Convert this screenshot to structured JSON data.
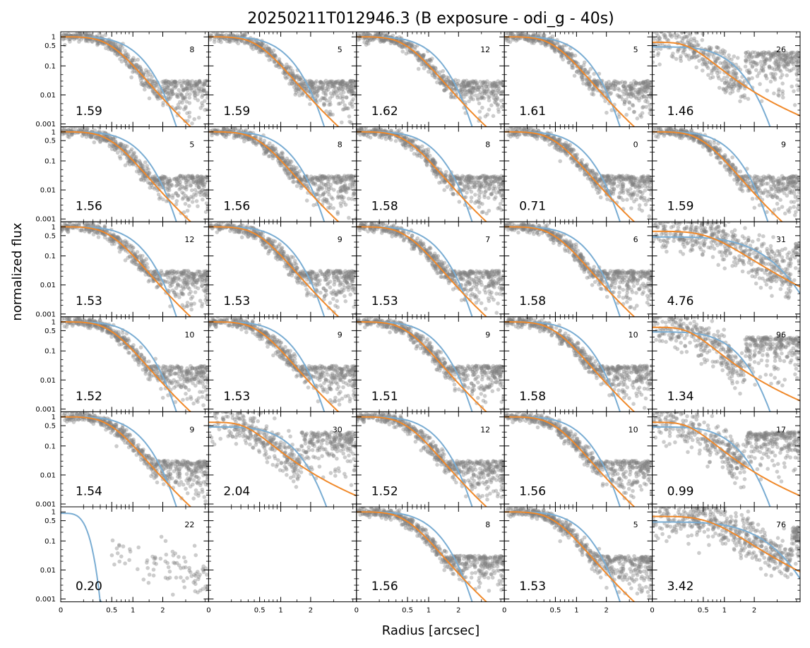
{
  "figure": {
    "title": "20250211T012946.3 (B exposure - odi_g - 40s)",
    "xlabel": "Radius [arcsec]",
    "ylabel": "normalized flux"
  },
  "colors": {
    "points": "#808080",
    "fit_blue": "#7aadd3",
    "fit_orange": "#f0892a",
    "axes": "#000000"
  },
  "chart_data": {
    "type": "scatter",
    "title": "20250211T012946.3 (B exposure - odi_g - 40s)",
    "xlabel": "Radius [arcsec]",
    "ylabel": "normalized flux",
    "grid": false,
    "rows": 6,
    "cols": 5,
    "y_scale": "log",
    "ylim": [
      0.0008,
      1.5
    ],
    "y_tick_labels": [
      "1",
      "0.5",
      "0.1",
      "0.01",
      "0.001"
    ],
    "y_tick_values": [
      1,
      0.5,
      0.1,
      0.01,
      0.001
    ],
    "x_scale": "sqrt",
    "xlim": [
      0,
      4.2
    ],
    "x_tick_labels": [
      "0",
      "0.5",
      "1",
      "2"
    ],
    "x_tick_values": [
      0,
      0.5,
      1,
      2
    ],
    "series": [
      {
        "name": "",
        "kind": "points"
      },
      {
        "name": "",
        "kind": "gaussian fit"
      },
      {
        "name": "",
        "kind": "moffat fit"
      }
    ],
    "panels": [
      {
        "fwhm": "1.59",
        "count": "8",
        "shape": "normal"
      },
      {
        "fwhm": "1.59",
        "count": "5",
        "shape": "normal"
      },
      {
        "fwhm": "1.62",
        "count": "12",
        "shape": "normal"
      },
      {
        "fwhm": "1.61",
        "count": "5",
        "shape": "normal"
      },
      {
        "fwhm": "1.46",
        "count": "26",
        "shape": "flat"
      },
      {
        "fwhm": "1.56",
        "count": "5",
        "shape": "normal"
      },
      {
        "fwhm": "1.56",
        "count": "8",
        "shape": "normal"
      },
      {
        "fwhm": "1.58",
        "count": "8",
        "shape": "normal"
      },
      {
        "fwhm": "0.71",
        "count": "0",
        "shape": "none"
      },
      {
        "fwhm": "1.59",
        "count": "9",
        "shape": "normal"
      },
      {
        "fwhm": "1.53",
        "count": "12",
        "shape": "normal"
      },
      {
        "fwhm": "1.53",
        "count": "9",
        "shape": "normal"
      },
      {
        "fwhm": "1.53",
        "count": "7",
        "shape": "normal"
      },
      {
        "fwhm": "1.58",
        "count": "6",
        "shape": "normal"
      },
      {
        "fwhm": "4.76",
        "count": "31",
        "shape": "broad"
      },
      {
        "fwhm": "1.52",
        "count": "10",
        "shape": "normal"
      },
      {
        "fwhm": "1.53",
        "count": "9",
        "shape": "normal"
      },
      {
        "fwhm": "1.51",
        "count": "9",
        "shape": "normal"
      },
      {
        "fwhm": "1.58",
        "count": "10",
        "shape": "normal"
      },
      {
        "fwhm": "1.34",
        "count": "96",
        "shape": "flat"
      },
      {
        "fwhm": "1.54",
        "count": "9",
        "shape": "normal"
      },
      {
        "fwhm": "2.04",
        "count": "30",
        "shape": "flat"
      },
      {
        "fwhm": "1.52",
        "count": "12",
        "shape": "normal"
      },
      {
        "fwhm": "1.56",
        "count": "10",
        "shape": "normal"
      },
      {
        "fwhm": "0.99",
        "count": "17",
        "shape": "flat"
      },
      {
        "fwhm": "0.20",
        "count": "22",
        "shape": "sparse"
      },
      {
        "fwhm": "",
        "count": "",
        "shape": "empty"
      },
      {
        "fwhm": "1.56",
        "count": "8",
        "shape": "normal"
      },
      {
        "fwhm": "1.53",
        "count": "5",
        "shape": "normal"
      },
      {
        "fwhm": "3.42",
        "count": "76",
        "shape": "broad"
      }
    ]
  }
}
